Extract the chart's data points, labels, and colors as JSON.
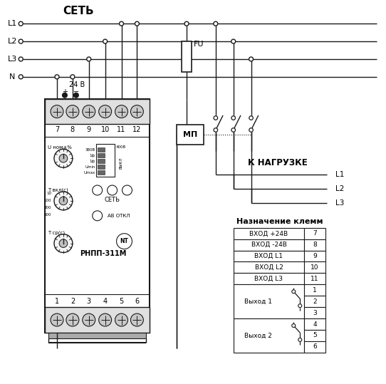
{
  "bg_color": "#ffffff",
  "fig_width": 5.42,
  "fig_height": 5.39,
  "dpi": 100,
  "network_label": "СЕТЬ",
  "lines": [
    "L1",
    "L2",
    "L3",
    "N"
  ],
  "load_label": "К НАГРУЗКЕ",
  "load_lines": [
    "L1",
    "L2",
    "L3"
  ],
  "terminal_label": "Назначение клемм",
  "terminal_rows": [
    [
      "ВХОД +24В",
      "7"
    ],
    [
      "ВХОД -24В",
      "8"
    ],
    [
      "ВХОД L1",
      "9"
    ],
    [
      "ВХОД L2",
      "10"
    ],
    [
      "ВХОД L3",
      "11"
    ]
  ],
  "output1_label": "Выход 1",
  "output2_label": "Выход 2",
  "output1_rows": [
    "1",
    "2",
    "3"
  ],
  "output2_rows": [
    "4",
    "5",
    "6"
  ],
  "device_label": "РНПП-311М",
  "device_top_terminals": [
    "7",
    "8",
    "9",
    "10",
    "11",
    "12"
  ],
  "device_bot_terminals": [
    "1",
    "2",
    "3",
    "4",
    "5",
    "6"
  ],
  "fu_label": "FU",
  "mp_label": "МП",
  "voltage_label": "24 В",
  "knob1_label": "U ном±%",
  "knob2_label": "Т вкл(с)",
  "knob3_label": "Т ср(с)",
  "seti_label": "СЕТЬ",
  "av_label": "АВ ОТКЛ",
  "sw_labels": [
    "380В",
    "1ф",
    "1ф",
    "Umin",
    "Umax"
  ],
  "sw_right": "400В",
  "vykl_label": "ВЫКЛ",
  "nt_label": "NT"
}
